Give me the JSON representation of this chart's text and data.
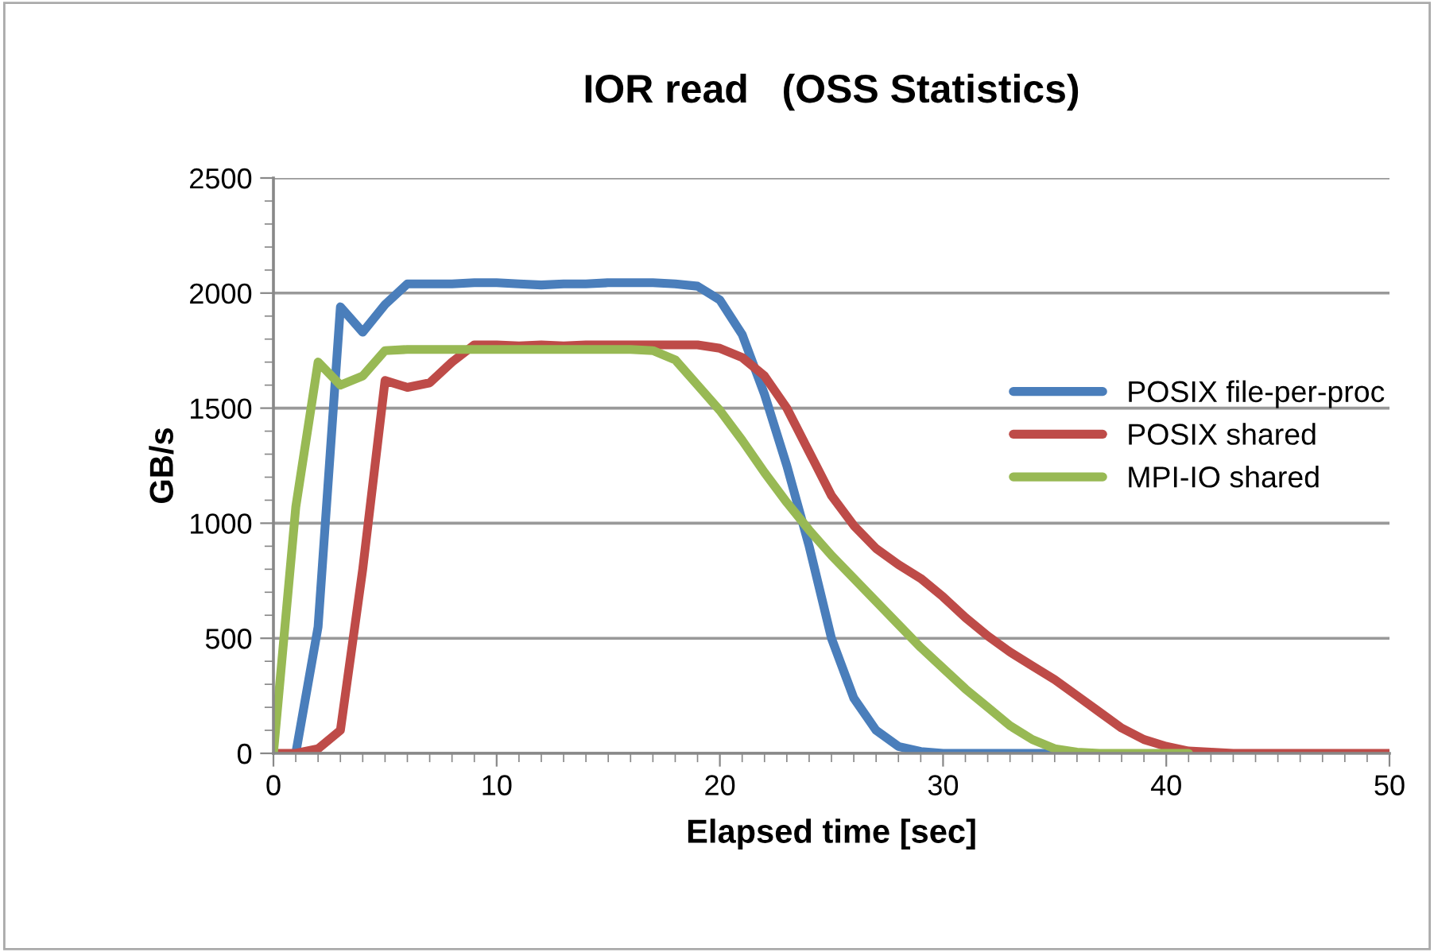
{
  "chart_data": {
    "type": "line",
    "title": "IOR read   (OSS Statistics)",
    "xlabel": "Elapsed time [sec]",
    "ylabel": "GB/s",
    "xlim": [
      0,
      50
    ],
    "xticks": [
      0,
      10,
      20,
      30,
      40,
      50
    ],
    "ylim": [
      0,
      2500
    ],
    "yticks": [
      0,
      500,
      1000,
      1500,
      2000,
      2500
    ],
    "grid": "y",
    "legend": "right",
    "marker": "none",
    "line_style": "solid",
    "series": [
      {
        "name": "POSIX file-per-proc",
        "color": "#4a7ebb",
        "x": [
          1,
          2,
          3,
          4,
          5,
          6,
          7,
          8,
          9,
          10,
          11,
          12,
          13,
          14,
          15,
          16,
          17,
          18,
          19,
          20,
          21,
          22,
          23,
          24,
          25,
          26,
          27,
          28,
          29,
          30,
          31,
          32,
          33,
          34,
          35
        ],
        "values": [
          0,
          550,
          1940,
          1830,
          1950,
          2040,
          2040,
          2040,
          2045,
          2045,
          2040,
          2035,
          2040,
          2040,
          2045,
          2045,
          2045,
          2040,
          2030,
          1970,
          1820,
          1560,
          1250,
          900,
          500,
          240,
          100,
          30,
          8,
          0,
          0,
          0,
          0,
          0,
          0
        ]
      },
      {
        "name": "POSIX shared",
        "color": "#be4b48",
        "x": [
          0,
          1,
          2,
          3,
          4,
          5,
          6,
          7,
          8,
          9,
          10,
          11,
          12,
          13,
          14,
          15,
          16,
          17,
          18,
          19,
          20,
          21,
          22,
          23,
          24,
          25,
          26,
          27,
          28,
          29,
          30,
          31,
          32,
          33,
          34,
          35,
          36,
          37,
          38,
          39,
          40,
          41,
          42,
          43,
          44,
          45,
          46,
          47,
          48,
          49,
          50
        ],
        "values": [
          0,
          0,
          20,
          100,
          800,
          1620,
          1590,
          1610,
          1700,
          1775,
          1775,
          1770,
          1775,
          1770,
          1775,
          1775,
          1775,
          1775,
          1775,
          1775,
          1760,
          1720,
          1640,
          1500,
          1310,
          1120,
          990,
          890,
          820,
          760,
          680,
          590,
          510,
          440,
          380,
          320,
          250,
          180,
          110,
          60,
          30,
          10,
          5,
          0,
          0,
          0,
          0,
          0,
          0,
          0,
          0
        ]
      },
      {
        "name": "MPI-IO shared",
        "color": "#98b954",
        "x": [
          0,
          1,
          2,
          3,
          4,
          5,
          6,
          7,
          8,
          9,
          10,
          11,
          12,
          13,
          14,
          15,
          16,
          17,
          18,
          19,
          20,
          21,
          22,
          23,
          24,
          25,
          26,
          27,
          28,
          29,
          30,
          31,
          32,
          33,
          34,
          35,
          36,
          37,
          38,
          39,
          40,
          41
        ],
        "values": [
          0,
          1070,
          1700,
          1600,
          1640,
          1750,
          1755,
          1755,
          1755,
          1755,
          1755,
          1755,
          1755,
          1755,
          1755,
          1755,
          1755,
          1750,
          1710,
          1600,
          1490,
          1360,
          1220,
          1090,
          970,
          860,
          760,
          660,
          560,
          460,
          370,
          280,
          200,
          120,
          60,
          20,
          5,
          0,
          0,
          0,
          0,
          0
        ]
      }
    ]
  }
}
